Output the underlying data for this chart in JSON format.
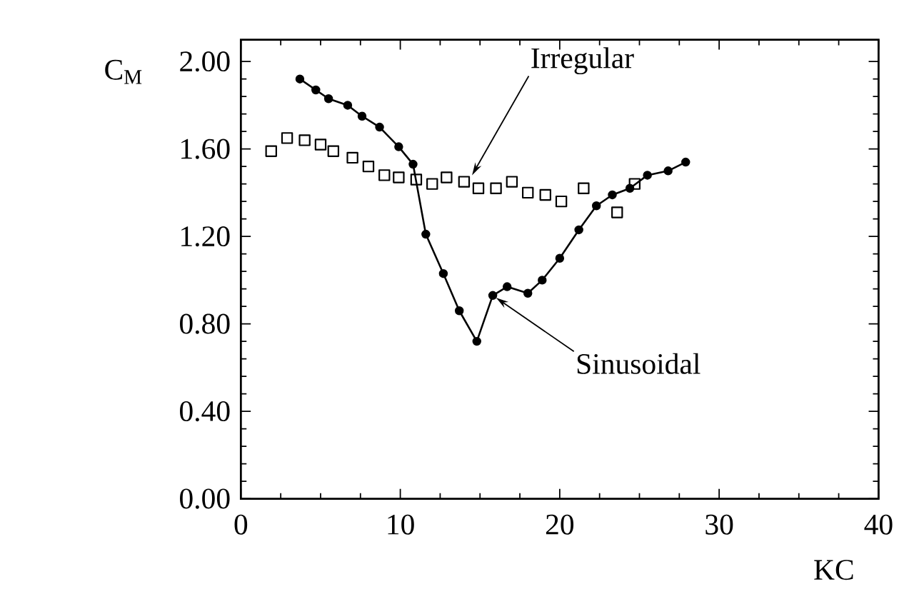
{
  "chart_data": {
    "type": "scatter",
    "xlabel": "KC",
    "ylabel": "C$_{M}$",
    "xlim": [
      0,
      40
    ],
    "xticks": [
      0,
      10,
      20,
      30,
      40
    ],
    "ylim": [
      0,
      2.1
    ],
    "yticks": [
      {
        "value": 0,
        "label": "0.00"
      },
      {
        "value": 0.4,
        "label": "0.40"
      },
      {
        "value": 0.8,
        "label": "0.80"
      },
      {
        "value": 1.2,
        "label": "1.20"
      },
      {
        "value": 1.6,
        "label": "1.60"
      },
      {
        "value": 2.0,
        "label": "2.00"
      }
    ],
    "grid": false,
    "series": [
      {
        "type": "line",
        "marker": "circle",
        "line_style": "solid",
        "color": "#000000",
        "x": [
          3.7,
          4.7,
          5.5,
          6.7,
          7.6,
          8.7,
          9.9,
          10.8,
          11.6,
          12.7,
          13.7,
          14.8,
          15.8,
          16.7,
          18.0,
          18.9,
          20.0,
          21.2,
          22.3,
          23.3,
          24.4,
          25.5,
          26.8,
          27.9
        ],
        "values": [
          1.92,
          1.87,
          1.83,
          1.8,
          1.75,
          1.7,
          1.61,
          1.53,
          1.21,
          1.03,
          0.86,
          0.72,
          0.93,
          0.97,
          0.94,
          1.0,
          1.1,
          1.23,
          1.34,
          1.39,
          1.42,
          1.48,
          1.5,
          1.54
        ]
      },
      {
        "marker": "square",
        "color": "#000000",
        "x": [
          1.9,
          2.9,
          4.0,
          5.0,
          5.8,
          7.0,
          8.0,
          9.0,
          9.9,
          11.0,
          12.0,
          12.9,
          14.0,
          14.9,
          16.0,
          17.0,
          18.0,
          19.1,
          20.1,
          21.5,
          23.6,
          24.7
        ],
        "values": [
          1.59,
          1.65,
          1.64,
          1.62,
          1.59,
          1.56,
          1.52,
          1.48,
          1.47,
          1.46,
          1.44,
          1.47,
          1.45,
          1.42,
          1.42,
          1.45,
          1.4,
          1.39,
          1.36,
          1.42,
          1.31,
          1.44
        ]
      }
    ],
    "annotations": [
      {
        "text": "Irregular",
        "x": 14.5,
        "y": 1.48
      },
      {
        "text": "Sinusoidal",
        "x": 16.0,
        "y": 0.92
      }
    ]
  }
}
